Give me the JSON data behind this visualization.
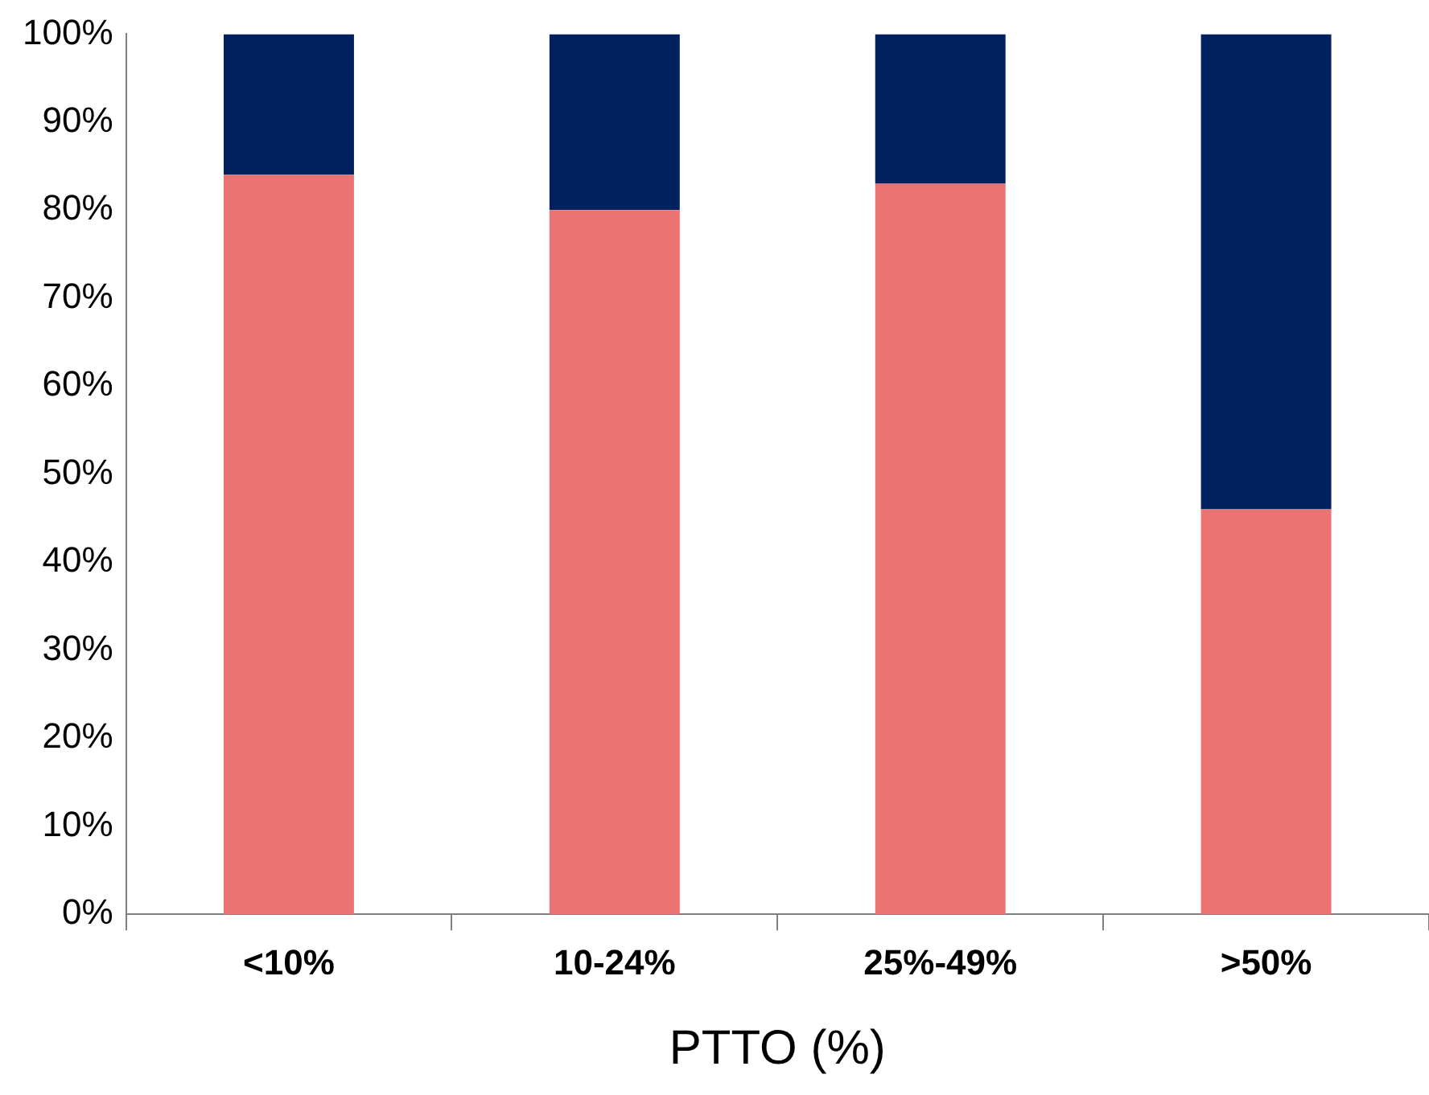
{
  "chart_data": {
    "type": "bar",
    "stacked": true,
    "xlabel": "PTTO (%)",
    "categories": [
      "<10%",
      "10-24%",
      "25%-49%",
      ">50%"
    ],
    "series": [
      {
        "color": "#ec7373",
        "values": [
          84,
          80,
          83,
          46
        ]
      },
      {
        "color": "#03215e",
        "values": [
          16,
          20,
          17,
          54
        ]
      }
    ],
    "ylim": [
      0,
      100
    ],
    "yticks": [
      {
        "value": 0,
        "label": "0%"
      },
      {
        "value": 10,
        "label": "10%"
      },
      {
        "value": 20,
        "label": "20%"
      },
      {
        "value": 30,
        "label": "30%"
      },
      {
        "value": 40,
        "label": "40%"
      },
      {
        "value": 50,
        "label": "50%"
      },
      {
        "value": 60,
        "label": "60%"
      },
      {
        "value": 70,
        "label": "70%"
      },
      {
        "value": 80,
        "label": "80%"
      },
      {
        "value": 90,
        "label": "90%"
      },
      {
        "value": 100,
        "label": "100%"
      }
    ],
    "grid": false,
    "legend": false
  }
}
